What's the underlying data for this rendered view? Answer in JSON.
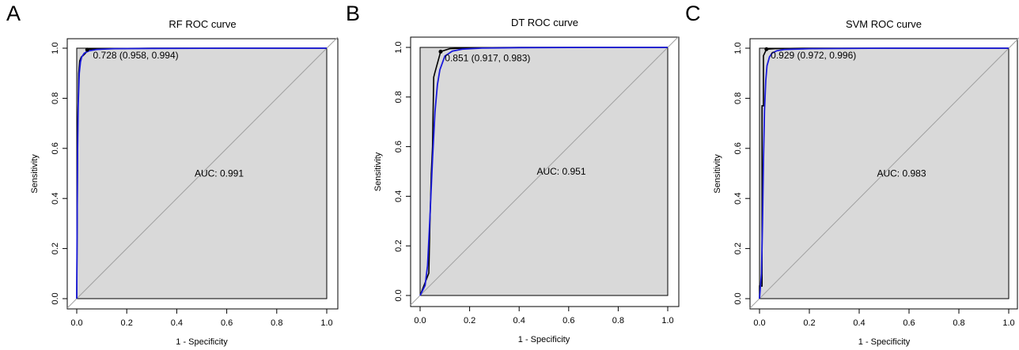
{
  "chart_data": [
    {
      "type": "line",
      "panel_label": "A",
      "title": "RF ROC curve",
      "xlabel": "1 - Specificity",
      "ylabel": "Sensitivity",
      "xlim": [
        0,
        1
      ],
      "ylim": [
        0,
        1
      ],
      "xticks": [
        "0.0",
        "0.2",
        "0.4",
        "0.6",
        "0.8",
        "1.0"
      ],
      "yticks": [
        "0.0",
        "0.2",
        "0.4",
        "0.6",
        "0.8",
        "1.0"
      ],
      "auc_text": "AUC: 0.991",
      "threshold_text": "0.728 (0.958, 0.994)",
      "threshold_point": {
        "x": 0.042,
        "y": 0.994
      },
      "label_anchor": {
        "x": 0.065,
        "y": 0.975
      },
      "series": [
        {
          "kind": "empirical",
          "color": "#000000",
          "x": [
            0,
            0.004,
            0.008,
            0.012,
            0.018,
            0.025,
            0.035,
            0.042,
            0.05,
            0.1,
            0.3,
            1.0
          ],
          "y": [
            0,
            0.7,
            0.9,
            0.95,
            0.965,
            0.97,
            0.98,
            0.994,
            0.996,
            0.998,
            1.0,
            1.0
          ]
        },
        {
          "kind": "smooth",
          "color": "#1a1adb",
          "x": [
            0,
            0.003,
            0.006,
            0.01,
            0.015,
            0.02,
            0.03,
            0.05,
            0.08,
            0.15,
            0.3,
            0.6,
            1.0
          ],
          "y": [
            0,
            0.55,
            0.78,
            0.9,
            0.945,
            0.965,
            0.98,
            0.99,
            0.995,
            0.998,
            0.999,
            1.0,
            1.0
          ]
        }
      ],
      "grid": false,
      "fill": "#d9d9d9"
    },
    {
      "type": "line",
      "panel_label": "B",
      "title": "DT ROC curve",
      "xlabel": "1 - Specificity",
      "ylabel": "Sensitivity",
      "xlim": [
        0,
        1
      ],
      "ylim": [
        0,
        1
      ],
      "xticks": [
        "0.0",
        "0.2",
        "0.4",
        "0.6",
        "0.8",
        "1.0"
      ],
      "yticks": [
        "0.0",
        "0.2",
        "0.4",
        "0.6",
        "0.8",
        "1.0"
      ],
      "auc_text": "AUC: 0.951",
      "threshold_text": "0.851 (0.917, 0.983)",
      "threshold_point": {
        "x": 0.083,
        "y": 0.983
      },
      "label_anchor": {
        "x": 0.1,
        "y": 0.96
      },
      "series": [
        {
          "kind": "empirical",
          "color": "#000000",
          "x": [
            0,
            0.035,
            0.04,
            0.045,
            0.05,
            0.055,
            0.06,
            0.083,
            0.12,
            0.2,
            0.4,
            1.0
          ],
          "y": [
            0,
            0.09,
            0.3,
            0.49,
            0.6,
            0.88,
            0.9,
            0.983,
            0.995,
            0.998,
            1.0,
            1.0
          ]
        },
        {
          "kind": "smooth",
          "color": "#1a1adb",
          "x": [
            0,
            0.02,
            0.03,
            0.04,
            0.05,
            0.06,
            0.07,
            0.08,
            0.1,
            0.13,
            0.17,
            0.25,
            0.4,
            0.7,
            1.0
          ],
          "y": [
            0,
            0.04,
            0.12,
            0.32,
            0.55,
            0.74,
            0.85,
            0.91,
            0.965,
            0.985,
            0.993,
            0.997,
            0.999,
            1.0,
            1.0
          ]
        }
      ],
      "grid": false,
      "fill": "#d9d9d9"
    },
    {
      "type": "line",
      "panel_label": "C",
      "title": "SVM ROC curve",
      "xlabel": "1 - Specificity",
      "ylabel": "Sensitivity",
      "xlim": [
        0,
        1
      ],
      "ylim": [
        0,
        1
      ],
      "xticks": [
        "0.0",
        "0.2",
        "0.4",
        "0.6",
        "0.8",
        "1.0"
      ],
      "yticks": [
        "0.0",
        "0.2",
        "0.4",
        "0.6",
        "0.8",
        "1.0"
      ],
      "auc_text": "AUC: 0.983",
      "threshold_text": "0.929 (0.972, 0.996)",
      "threshold_point": {
        "x": 0.028,
        "y": 0.996
      },
      "label_anchor": {
        "x": 0.045,
        "y": 0.975
      },
      "series": [
        {
          "kind": "empirical",
          "color": "#000000",
          "x": [
            0,
            0.0,
            0.01,
            0.01,
            0.016,
            0.016,
            0.028,
            0.06,
            0.2,
            1.0
          ],
          "y": [
            0,
            0.05,
            0.05,
            0.77,
            0.77,
            0.97,
            0.996,
            0.998,
            1.0,
            1.0
          ]
        },
        {
          "kind": "smooth",
          "color": "#1a1adb",
          "x": [
            0,
            0.008,
            0.012,
            0.016,
            0.02,
            0.025,
            0.03,
            0.04,
            0.05,
            0.07,
            0.1,
            0.2,
            0.5,
            1.0
          ],
          "y": [
            0,
            0.1,
            0.3,
            0.55,
            0.75,
            0.87,
            0.93,
            0.965,
            0.98,
            0.99,
            0.995,
            0.998,
            1.0,
            1.0
          ]
        }
      ],
      "grid": false,
      "fill": "#d9d9d9"
    }
  ]
}
